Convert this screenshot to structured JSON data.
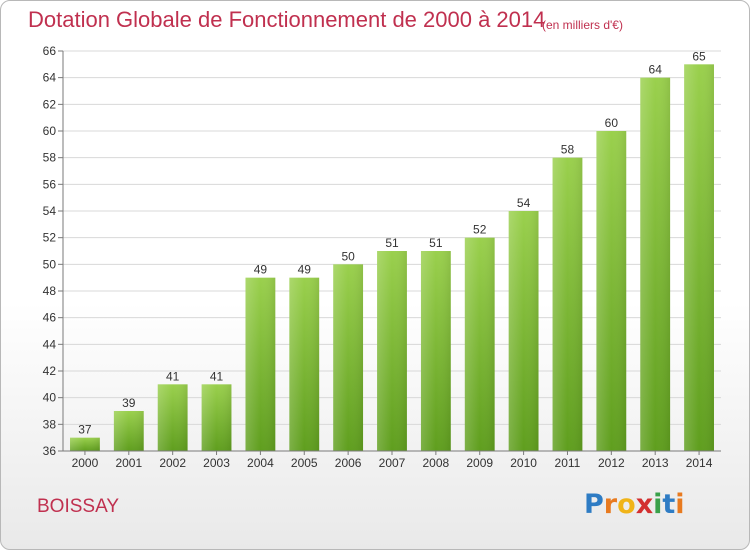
{
  "header": {
    "title": "Dotation Globale de Fonctionnement de 2000 à 2014",
    "subtitle": "(en milliers d'€)"
  },
  "footer": {
    "commune": "BOISSAY",
    "logo": {
      "letters": [
        "P",
        "r",
        "o",
        "x",
        "i",
        "t",
        "i"
      ],
      "colors": [
        "#2e7cc4",
        "#e87a1f",
        "#f0b418",
        "#d32f2f",
        "#3aa14a",
        "#2e7cc4",
        "#e87a1f"
      ]
    }
  },
  "colors": {
    "bar_top": "#9ad04d",
    "bar_bottom": "#5f9e1e",
    "grid": "#d8d8d8",
    "axis": "#7a7a7a"
  },
  "chart_data": {
    "type": "bar",
    "title": "Dotation Globale de Fonctionnement de 2000 à 2014",
    "subtitle": "(en milliers d'€)",
    "categories": [
      "2000",
      "2001",
      "2002",
      "2003",
      "2004",
      "2005",
      "2006",
      "2007",
      "2008",
      "2009",
      "2010",
      "2011",
      "2012",
      "2013",
      "2014"
    ],
    "values": [
      37,
      39,
      41,
      41,
      49,
      49,
      50,
      51,
      51,
      52,
      54,
      58,
      60,
      64,
      65
    ],
    "xlabel": "",
    "ylabel": "",
    "ylim": [
      36,
      66
    ],
    "yticks": [
      36,
      38,
      40,
      42,
      44,
      46,
      48,
      50,
      52,
      54,
      56,
      58,
      60,
      62,
      64,
      66
    ],
    "grid": true,
    "data_labels": true
  }
}
